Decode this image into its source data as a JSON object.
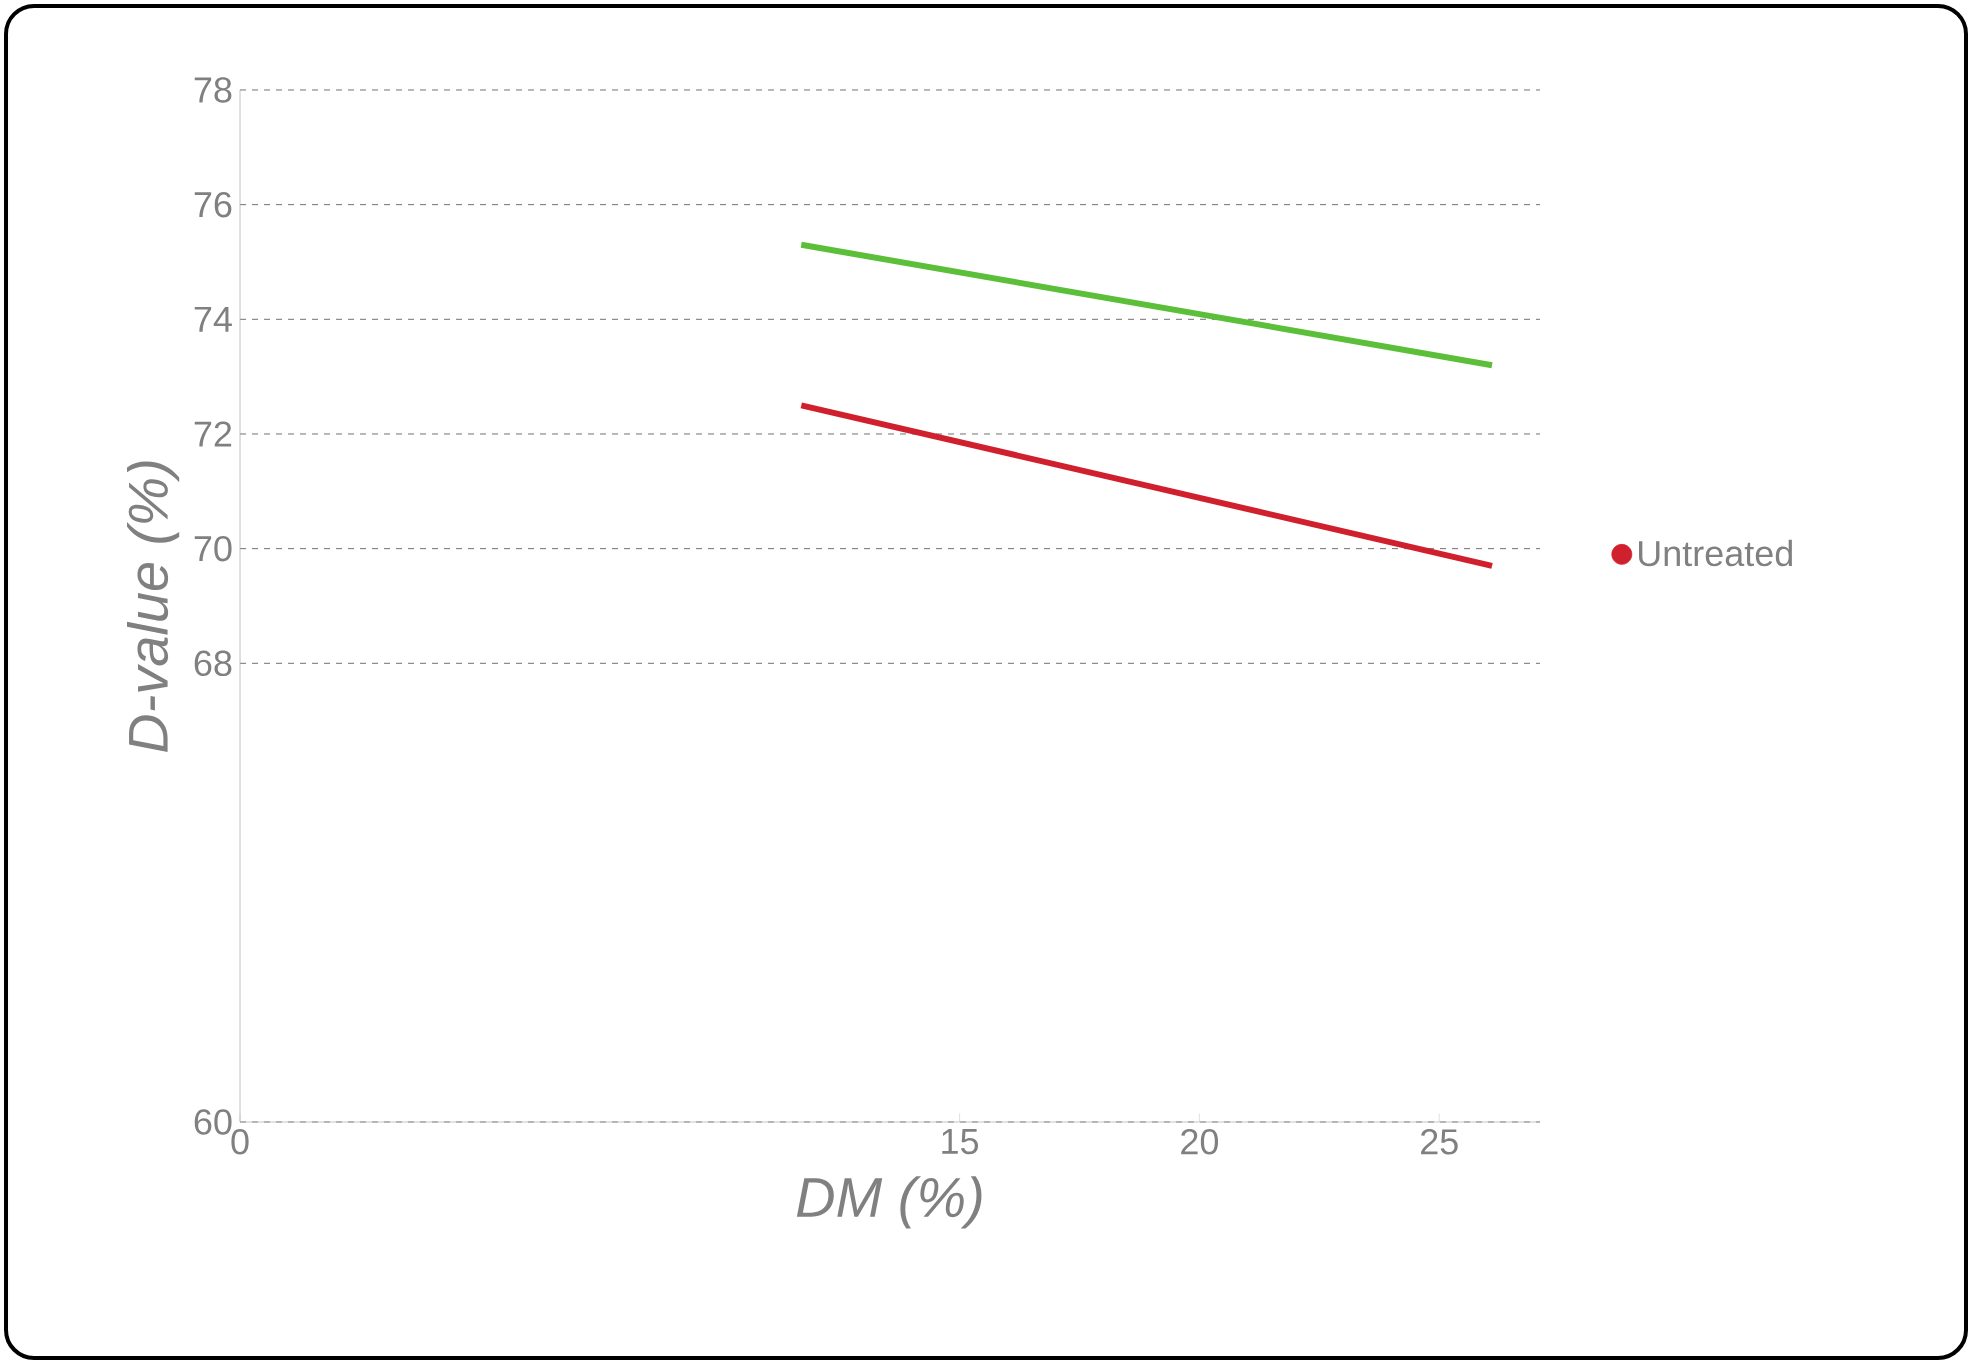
{
  "chart_data": {
    "type": "line",
    "xlabel": "DM (%)",
    "ylabel": "D-value (%)",
    "xlim": [
      0,
      27.1
    ],
    "xticks": [
      0,
      15,
      20,
      25
    ],
    "ylim": [
      60,
      78
    ],
    "yticks": [
      60,
      68,
      70,
      72,
      74,
      76,
      78
    ],
    "grid": "y",
    "legend": "right",
    "line_style": "solid",
    "x": [
      11.7,
      26.1
    ],
    "series": [
      {
        "color": "#5cbf3a",
        "values": [
          75.3,
          73.2
        ]
      },
      {
        "name": "Untreated",
        "color": "#d0202e",
        "values": [
          72.5,
          69.7
        ]
      }
    ]
  }
}
